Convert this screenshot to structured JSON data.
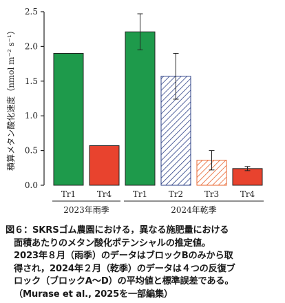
{
  "chart_data": {
    "type": "bar",
    "ylabel": "積算メタン酸化速度（nmol m⁻² s⁻¹）",
    "ylim": [
      0,
      2.5
    ],
    "yticks": [
      "0.0",
      "0.5",
      "1.0",
      "1.5",
      "2.0",
      "2.5"
    ],
    "categories": [
      "Tr1",
      "Tr4",
      "Tr1",
      "Tr2",
      "Tr3",
      "Tr4"
    ],
    "groups": [
      {
        "label": "2023年雨季",
        "categories": [
          0,
          1
        ]
      },
      {
        "label": "2024年乾季",
        "categories": [
          2,
          3,
          4,
          5
        ]
      }
    ],
    "values": [
      1.9,
      0.57,
      2.21,
      1.57,
      0.36,
      0.24
    ],
    "errors": [
      null,
      null,
      0.26,
      0.33,
      0.14,
      0.03
    ],
    "bar_styles": [
      {
        "fill": "#1e9a4b",
        "pattern": "solid"
      },
      {
        "fill": "#e8432e",
        "pattern": "solid"
      },
      {
        "fill": "#1e9a4b",
        "pattern": "solid"
      },
      {
        "fill": "#2b3f86",
        "pattern": "hatch"
      },
      {
        "fill": "#e8642e",
        "pattern": "hatch"
      },
      {
        "fill": "#e8432e",
        "pattern": "solid"
      }
    ]
  },
  "caption": {
    "lines": [
      "図６：SKRSゴム農園における，異なる施肥量における",
      "面積あたりのメタン酸化ポテンシャルの推定値。",
      "2023年８月（雨季）のデータはブロックBのみから取",
      "得され，2024年２月（乾季）のデータは４つの反復ブ",
      "ロック（ブロックA～D）の平均値と標準誤差である。",
      "（Murase et al., 2025を一部編集）"
    ]
  }
}
